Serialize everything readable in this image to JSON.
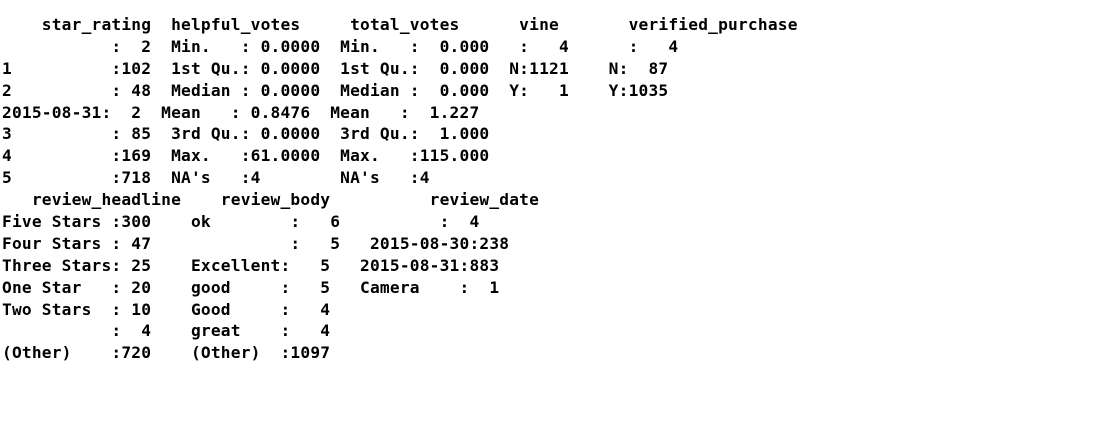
{
  "console": {
    "lines": [
      "    star_rating  helpful_votes     total_votes      vine       verified_purchase",
      "           :  2  Min.   : 0.0000  Min.   :  0.000   :   4      :   4",
      "1          :102  1st Qu.: 0.0000  1st Qu.:  0.000  N:1121    N:  87",
      "2          : 48  Median : 0.0000  Median :  0.000  Y:   1    Y:1035",
      "2015-08-31:  2  Mean   : 0.8476  Mean   :  1.227",
      "3          : 85  3rd Qu.: 0.0000  3rd Qu.:  1.000",
      "4          :169  Max.   :61.0000  Max.   :115.000",
      "5          :718  NA's   :4        NA's   :4",
      "   review_headline    review_body          review_date",
      "Five Stars :300    ok        :   6          :  4",
      "Four Stars : 47              :   5   2015-08-30:238",
      "Three Stars: 25    Excellent:   5   2015-08-31:883",
      "One Star   : 20    good     :   5   Camera    :  1",
      "Two Stars  : 10    Good     :   4",
      "           :  4    great    :   4",
      "(Other)    :720    (Other)  :1097"
    ]
  }
}
